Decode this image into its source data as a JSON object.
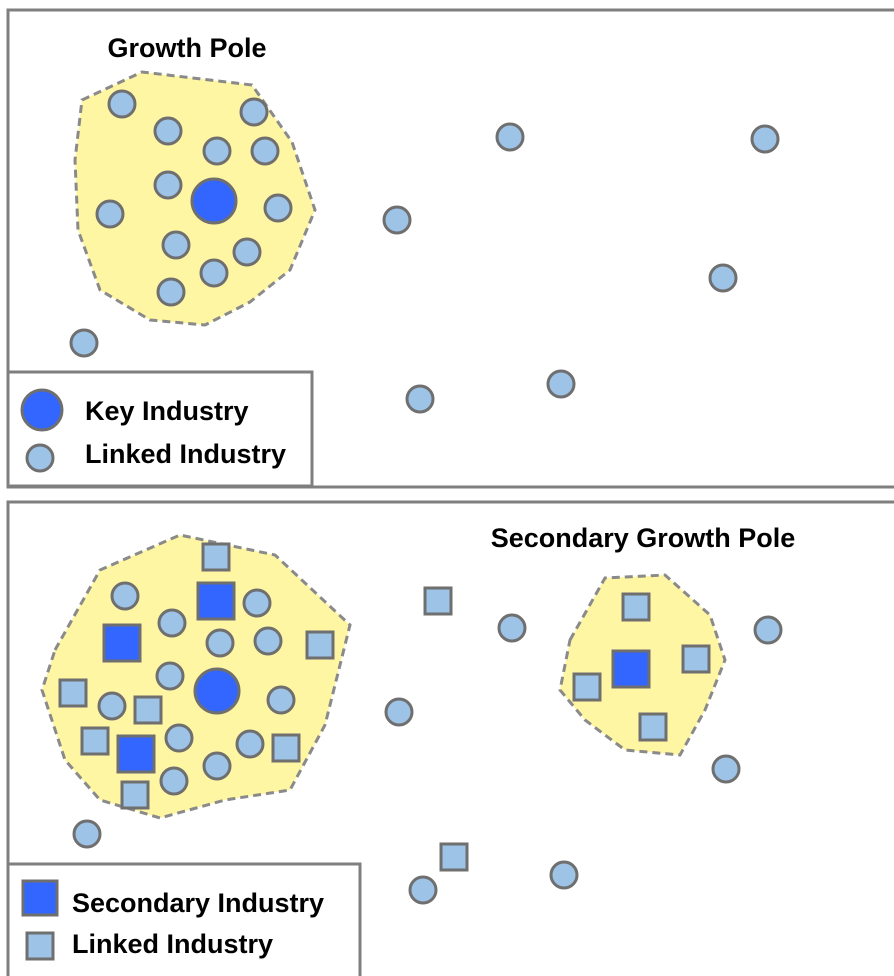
{
  "panels": [
    {
      "title": "Growth Pole",
      "legend": [
        "Key Industry",
        "Linked Industry"
      ]
    },
    {
      "title": "Secondary Growth Pole",
      "legend": [
        "Secondary Industry",
        "Linked Industry"
      ]
    }
  ]
}
